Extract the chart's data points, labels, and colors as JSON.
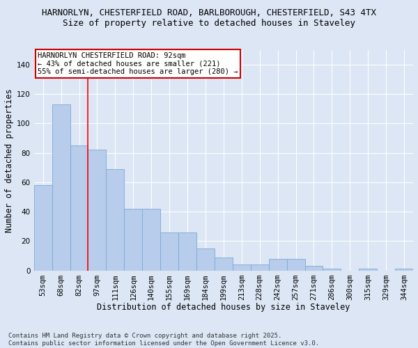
{
  "title_line1": "HARNORLYN, CHESTERFIELD ROAD, BARLBOROUGH, CHESTERFIELD, S43 4TX",
  "title_line2": "Size of property relative to detached houses in Staveley",
  "xlabel": "Distribution of detached houses by size in Staveley",
  "ylabel": "Number of detached properties",
  "categories": [
    "53sqm",
    "68sqm",
    "82sqm",
    "97sqm",
    "111sqm",
    "126sqm",
    "140sqm",
    "155sqm",
    "169sqm",
    "184sqm",
    "199sqm",
    "213sqm",
    "228sqm",
    "242sqm",
    "257sqm",
    "271sqm",
    "286sqm",
    "300sqm",
    "315sqm",
    "329sqm",
    "344sqm"
  ],
  "values": [
    58,
    113,
    85,
    82,
    69,
    42,
    42,
    26,
    26,
    15,
    9,
    4,
    4,
    8,
    8,
    3,
    1,
    0,
    1,
    0,
    1
  ],
  "bar_color": "#b8cceb",
  "bar_edge_color": "#7aaad4",
  "red_line_x": 2.5,
  "ylim": [
    0,
    150
  ],
  "yticks": [
    0,
    20,
    40,
    60,
    80,
    100,
    120,
    140
  ],
  "annotation_text": "HARNORLYN CHESTERFIELD ROAD: 92sqm\n← 43% of detached houses are smaller (221)\n55% of semi-detached houses are larger (280) →",
  "annotation_box_color": "#ffffff",
  "annotation_box_edge": "#cc0000",
  "footer_line1": "Contains HM Land Registry data © Crown copyright and database right 2025.",
  "footer_line2": "Contains public sector information licensed under the Open Government Licence v3.0.",
  "background_color": "#dce6f5",
  "plot_bg_color": "#dce6f5",
  "grid_color": "#ffffff",
  "title_fontsize": 9,
  "subtitle_fontsize": 9,
  "axis_label_fontsize": 8.5,
  "tick_fontsize": 7.5,
  "footer_fontsize": 6.5,
  "annotation_fontsize": 7.5
}
